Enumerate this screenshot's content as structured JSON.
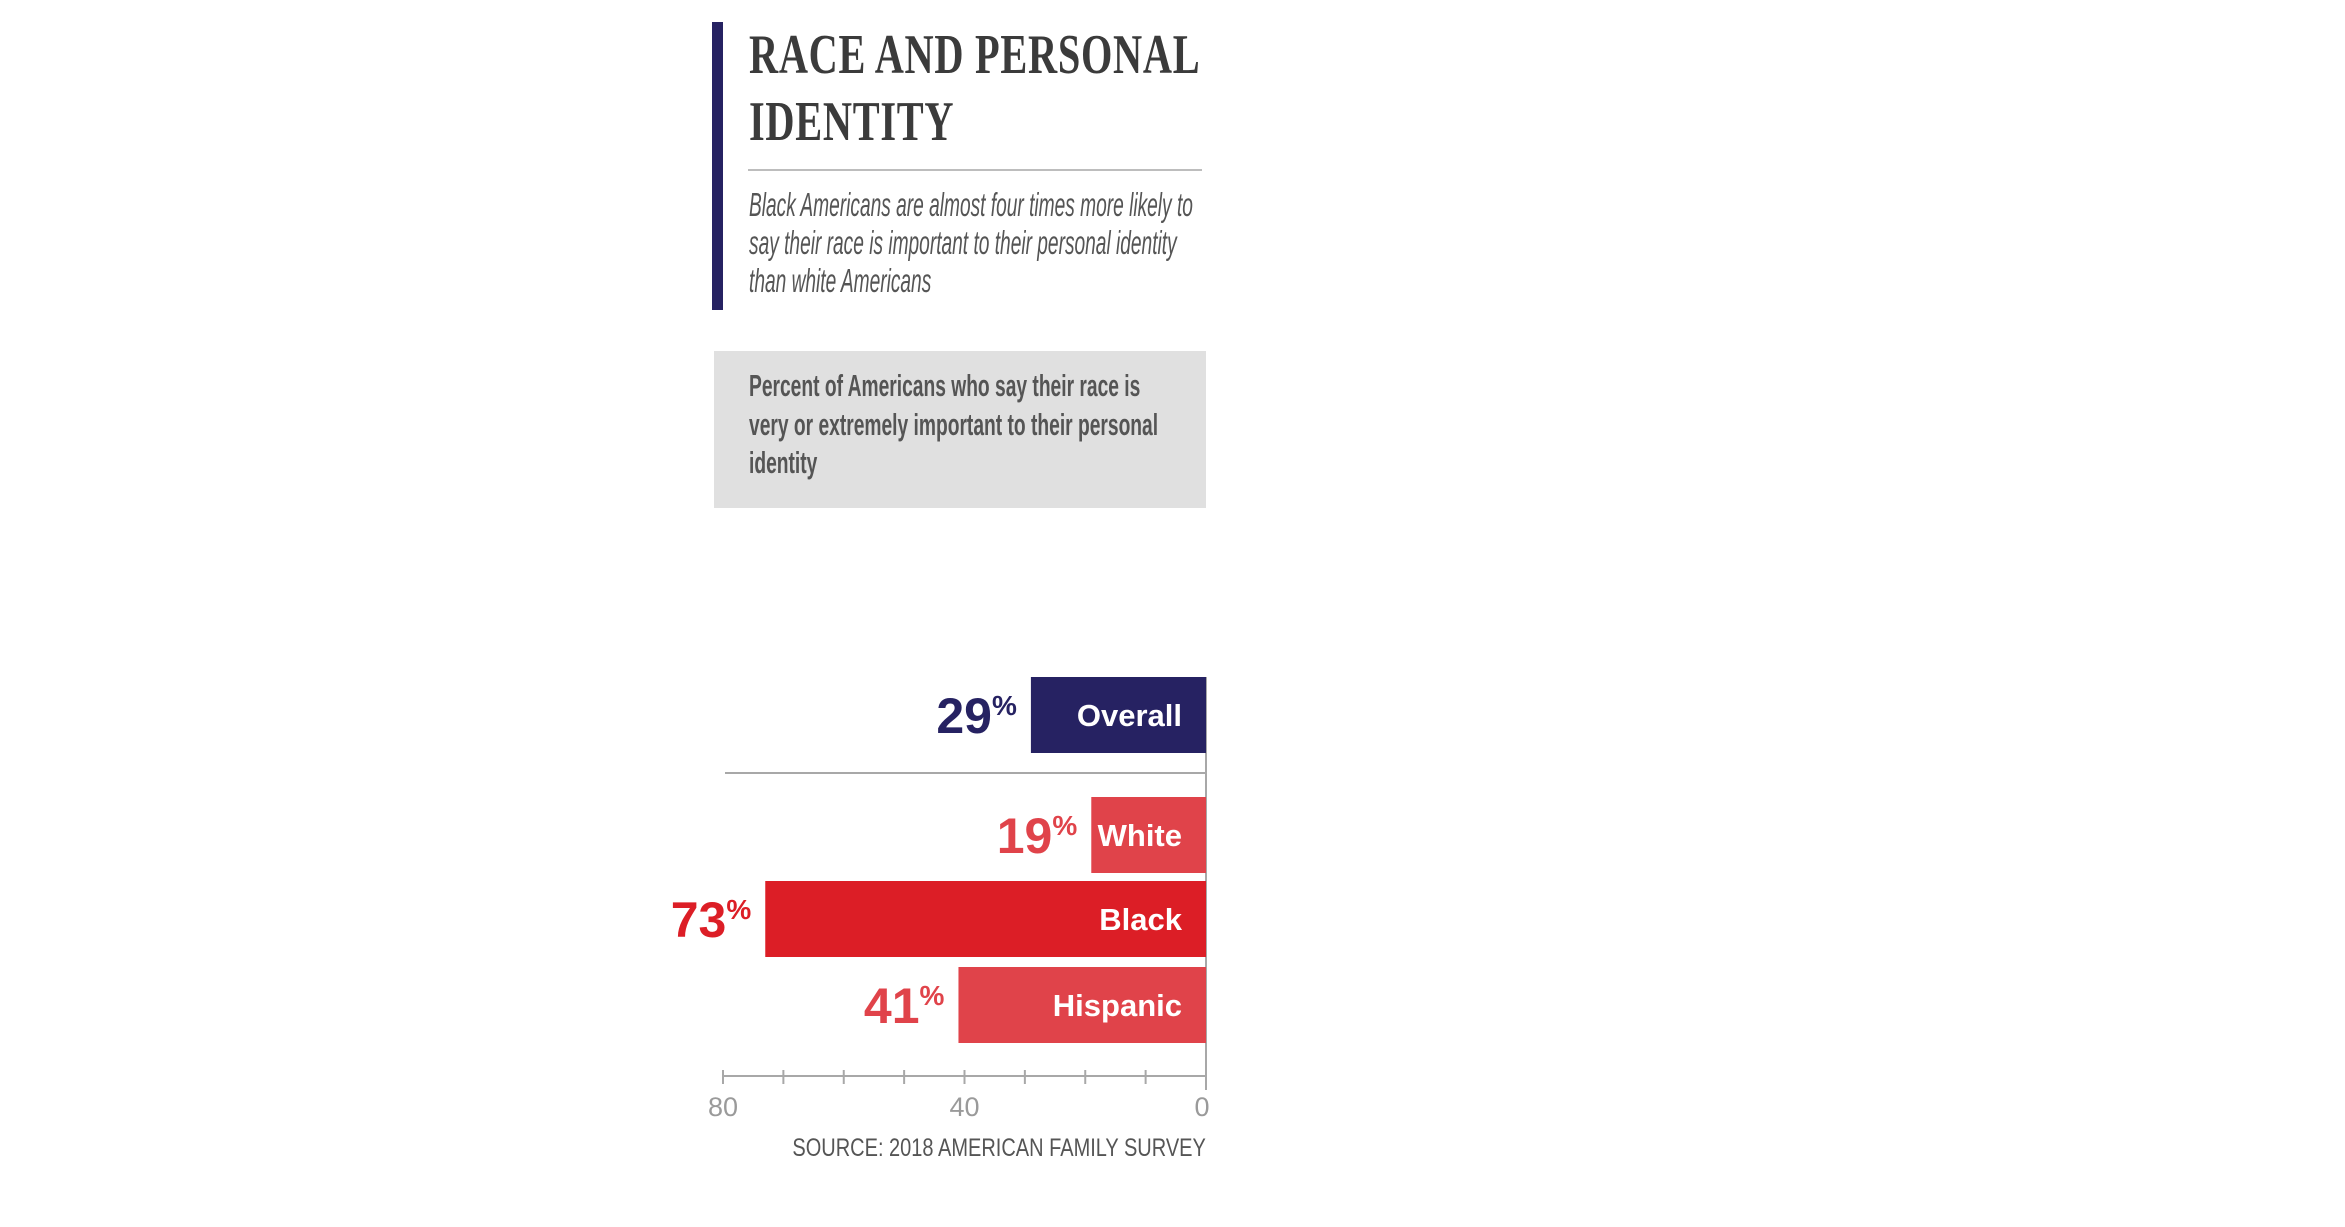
{
  "header": {
    "title": "RACE AND PERSONAL IDENTITY",
    "subtitle": "Black Americans are almost four times more likely to say their race is important to their personal identity than white Americans",
    "question": "Percent of Americans who say their race is very or extremely important to their personal identity"
  },
  "colors": {
    "accent": "#262262",
    "overall": "#262262",
    "group": "#e0434a",
    "highlight": "#dc1e26",
    "text": "#555555"
  },
  "chart_data": {
    "type": "bar",
    "orientation": "horizontal",
    "direction": "right-to-left",
    "categories": [
      "Overall",
      "White",
      "Black",
      "Hispanic"
    ],
    "values": [
      29,
      19,
      73,
      41
    ],
    "value_labels": [
      "29",
      "19",
      "73",
      "41"
    ],
    "unit": "%",
    "bar_colors": [
      "#262262",
      "#e0434a",
      "#dc1e26",
      "#e0434a"
    ],
    "xlim": [
      80,
      0
    ],
    "ticks": [
      80,
      70,
      60,
      50,
      40,
      30,
      20,
      10,
      0
    ],
    "tick_labels": [
      "80",
      "40",
      "0"
    ],
    "grid": false,
    "source": "SOURCE: 2018 AMERICAN FAMILY SURVEY"
  }
}
